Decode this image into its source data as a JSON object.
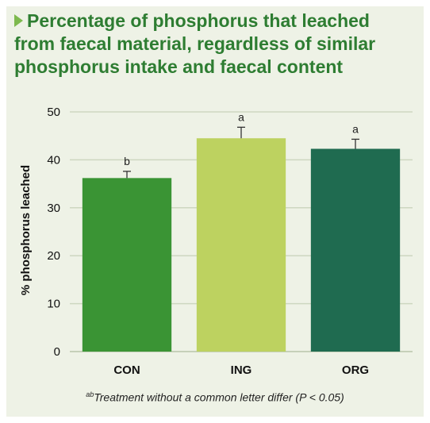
{
  "title_lines": [
    "Percentage of phosphorus that leached",
    "from faecal material, regardless of similar",
    "phosphorus intake and faecal content"
  ],
  "footnote": {
    "sup": "ab",
    "text": "Treatment without a common letter differ (P < 0.05)"
  },
  "colors": {
    "title": "#2e7d32",
    "arrow": "#7db94e",
    "panel": "#eef2e6",
    "grid": "#cdd7c0"
  },
  "chart_data": {
    "type": "bar",
    "title": "",
    "xlabel": "",
    "ylabel": "% phosphorus leached",
    "ylim": [
      0,
      50
    ],
    "yticks": [
      0,
      10,
      20,
      30,
      40,
      50
    ],
    "grid": true,
    "categories": [
      "CON",
      "ING",
      "ORG"
    ],
    "values": [
      36.2,
      44.5,
      42.3
    ],
    "errors": [
      1.4,
      2.3,
      2.0
    ],
    "letters": [
      "b",
      "a",
      "a"
    ],
    "bar_colors": [
      "#3a9434",
      "#bdd260",
      "#1f6b50"
    ]
  }
}
